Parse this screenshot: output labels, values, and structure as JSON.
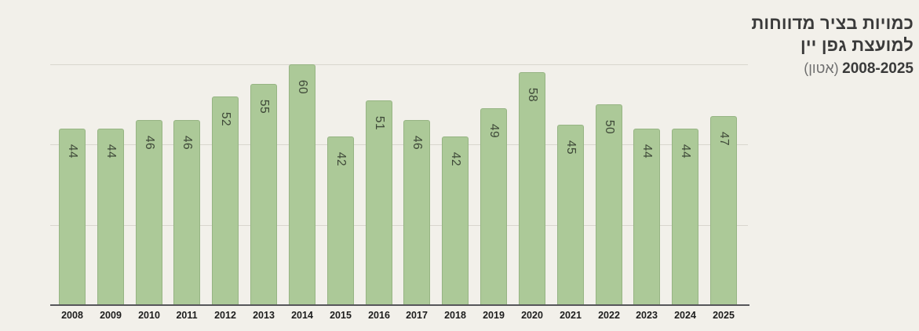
{
  "title": {
    "line1": "כמויות בציר מדווחות",
    "line2": "למועצת גפן יין",
    "range": "2008-2025",
    "unit": "(אטון)"
  },
  "chart_data": {
    "type": "bar",
    "title": "כמויות בציר מדווחות למועצת גפן יין 2008-2025 (אטון)",
    "xlabel": "",
    "ylabel": "אטון",
    "categories": [
      "2008",
      "2009",
      "2010",
      "2011",
      "2012",
      "2013",
      "2014",
      "2015",
      "2016",
      "2017",
      "2018",
      "2019",
      "2020",
      "2021",
      "2022",
      "2023",
      "2024",
      "2025"
    ],
    "values": [
      44,
      44,
      46,
      46,
      52,
      55,
      60,
      42,
      51,
      46,
      42,
      49,
      58,
      45,
      50,
      44,
      44,
      47
    ],
    "data_labels_rotated": true,
    "ylim": [
      0,
      62
    ],
    "gridline_values": [
      20,
      40,
      60
    ],
    "grid": "horizontal",
    "legend_position": "none",
    "colors": {
      "background": "#f2f0ea",
      "bar_fill": "#acc998",
      "bar_border": "#96b483",
      "gridline": "#d9d6ce",
      "axis_line": "#56565a",
      "bar_label": "#3e4838",
      "tick_label": "#1d1d1d",
      "title_text": "#3a3a3a",
      "title_unit": "#6f6f6f"
    }
  }
}
